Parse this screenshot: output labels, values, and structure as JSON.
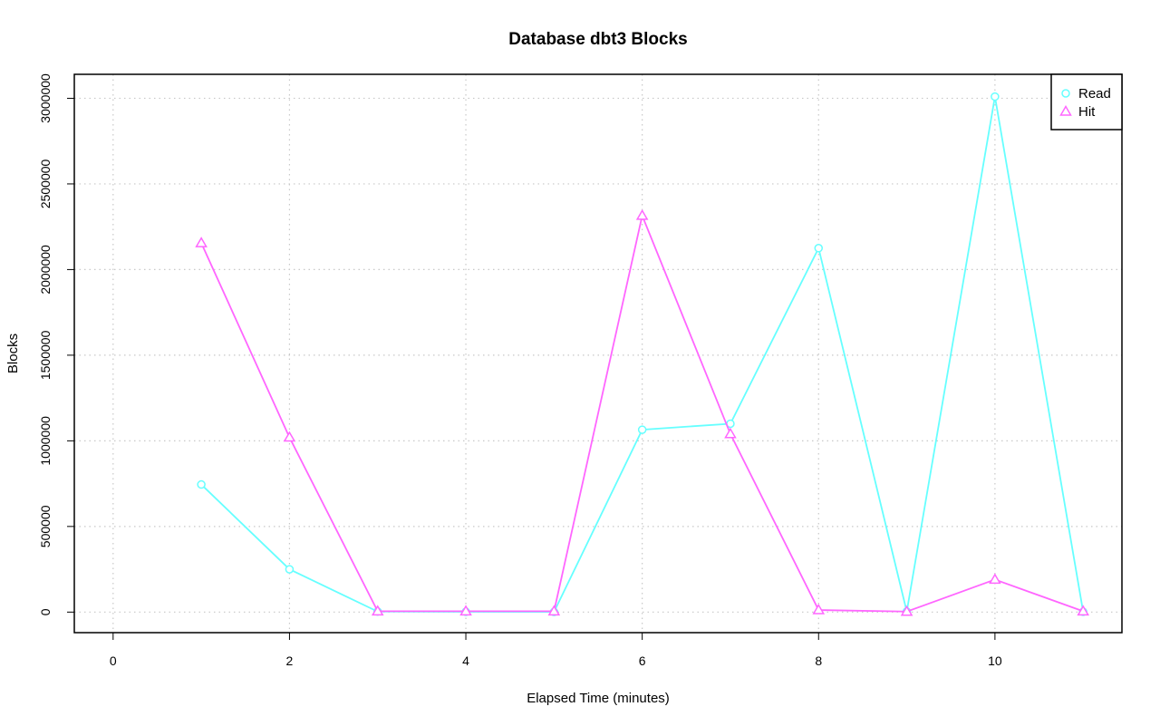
{
  "chart_data": {
    "type": "line",
    "title": "Database dbt3 Blocks",
    "xlabel": "Elapsed Time (minutes)",
    "ylabel": "Blocks",
    "xlim": [
      -0.44,
      11.44
    ],
    "ylim": [
      -120000,
      3140000
    ],
    "x_ticks": [
      0,
      2,
      4,
      6,
      8,
      10
    ],
    "x_tick_labels": [
      "0",
      "2",
      "4",
      "6",
      "8",
      "10"
    ],
    "y_ticks": [
      0,
      500000,
      1000000,
      1500000,
      2000000,
      2500000,
      3000000
    ],
    "y_tick_labels": [
      "0",
      "500000",
      "1000000",
      "1500000",
      "2000000",
      "2500000",
      "3000000"
    ],
    "grid": true,
    "legend_position": "top-right",
    "x": [
      1,
      2,
      3,
      4,
      5,
      6,
      7,
      8,
      9,
      10,
      11
    ],
    "series": [
      {
        "name": "Read",
        "color": "#66ffff",
        "marker": "circle",
        "values": [
          745000,
          250000,
          3000,
          2000,
          1000,
          1065000,
          1100000,
          2125000,
          3000,
          3010000,
          2000
        ]
      },
      {
        "name": "Hit",
        "color": "#ff66ff",
        "marker": "triangle",
        "values": [
          2155000,
          1020000,
          5000,
          5000,
          5000,
          2315000,
          1040000,
          12000,
          3000,
          190000,
          5000
        ]
      }
    ]
  }
}
